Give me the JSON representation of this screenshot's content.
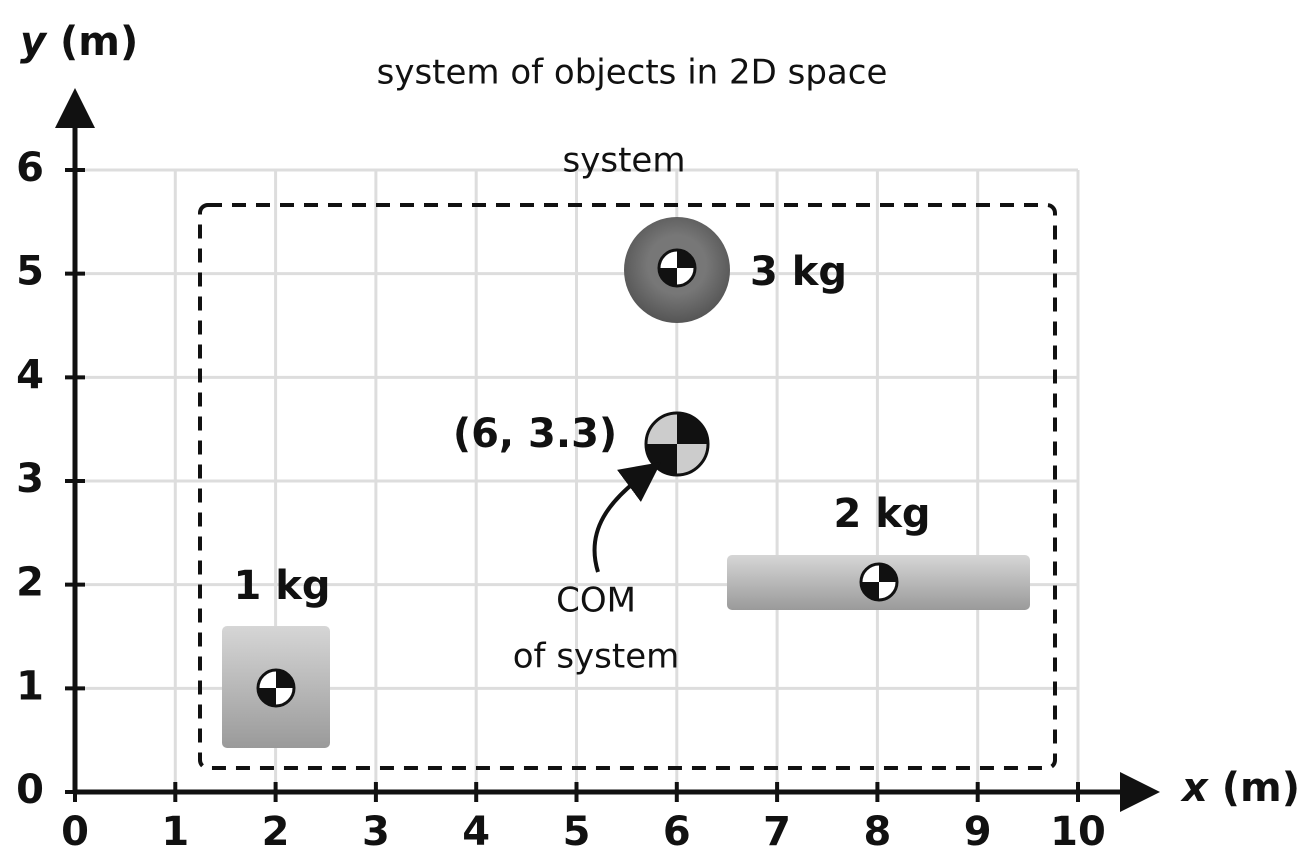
{
  "title": "system of objects in 2D space",
  "x_axis": {
    "variable": "x",
    "unit": "(m)",
    "ticks": [
      0,
      1,
      2,
      3,
      4,
      5,
      6,
      7,
      8,
      9,
      10
    ]
  },
  "y_axis": {
    "variable": "y",
    "unit": "(m)",
    "ticks": [
      0,
      1,
      2,
      3,
      4,
      5,
      6
    ]
  },
  "system_label": "system",
  "objects": [
    {
      "label": "1 kg"
    },
    {
      "label": "2 kg"
    },
    {
      "label": "3 kg"
    }
  ],
  "com": {
    "label": "(6, 3.3)",
    "annotation": [
      "COM",
      "of system"
    ]
  }
}
